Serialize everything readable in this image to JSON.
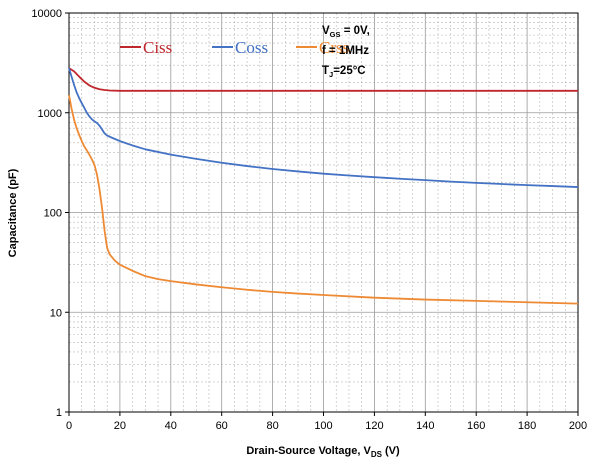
{
  "chart_data": {
    "type": "line",
    "title": "",
    "xlabel": {
      "text": "Drain-Source Voltage, V",
      "sub": "DS",
      "tail": " (V)"
    },
    "ylabel": "Capacitance (pF)",
    "xlim": [
      0,
      200
    ],
    "ylim": [
      1,
      10000
    ],
    "yscale": "log",
    "xticks": [
      "0",
      "20",
      "40",
      "60",
      "80",
      "100",
      "120",
      "140",
      "160",
      "180",
      "200"
    ],
    "yticks": [
      "1",
      "10",
      "100",
      "1000",
      "10000"
    ],
    "grid": true,
    "legend": "top-left",
    "conditions": [
      {
        "main": "V",
        "sub": "GS",
        "tail": " = 0V,"
      },
      {
        "main": "f = 1MHz",
        "sub": "",
        "tail": ""
      },
      {
        "main": "T",
        "sub": "J",
        "tail": "=25°C"
      }
    ],
    "series": [
      {
        "name": "Ciss",
        "color": "#c0272d",
        "points": [
          [
            0,
            2800
          ],
          [
            2,
            2600
          ],
          [
            4,
            2300
          ],
          [
            6,
            2050
          ],
          [
            8,
            1880
          ],
          [
            10,
            1780
          ],
          [
            12,
            1720
          ],
          [
            14,
            1690
          ],
          [
            16,
            1670
          ],
          [
            20,
            1660
          ],
          [
            30,
            1660
          ],
          [
            50,
            1660
          ],
          [
            100,
            1660
          ],
          [
            150,
            1660
          ],
          [
            200,
            1660
          ]
        ]
      },
      {
        "name": "Coss",
        "color": "#4472c4",
        "points": [
          [
            0,
            2800
          ],
          [
            1,
            2300
          ],
          [
            2,
            1900
          ],
          [
            3,
            1600
          ],
          [
            4,
            1400
          ],
          [
            5,
            1250
          ],
          [
            6,
            1120
          ],
          [
            7,
            1000
          ],
          [
            8,
            920
          ],
          [
            9,
            860
          ],
          [
            10,
            820
          ],
          [
            11,
            790
          ],
          [
            12,
            740
          ],
          [
            13,
            680
          ],
          [
            14,
            620
          ],
          [
            15,
            590
          ],
          [
            17,
            560
          ],
          [
            20,
            520
          ],
          [
            25,
            470
          ],
          [
            30,
            430
          ],
          [
            40,
            380
          ],
          [
            50,
            345
          ],
          [
            60,
            315
          ],
          [
            70,
            292
          ],
          [
            80,
            273
          ],
          [
            90,
            258
          ],
          [
            100,
            245
          ],
          [
            110,
            235
          ],
          [
            120,
            226
          ],
          [
            130,
            218
          ],
          [
            140,
            211
          ],
          [
            150,
            204
          ],
          [
            160,
            198
          ],
          [
            170,
            193
          ],
          [
            180,
            188
          ],
          [
            190,
            184
          ],
          [
            200,
            180
          ]
        ]
      },
      {
        "name": "Crss",
        "color": "#ee8a34",
        "points": [
          [
            0,
            1500
          ],
          [
            1,
            1100
          ],
          [
            2,
            850
          ],
          [
            3,
            700
          ],
          [
            4,
            600
          ],
          [
            5,
            520
          ],
          [
            6,
            460
          ],
          [
            7,
            420
          ],
          [
            8,
            380
          ],
          [
            9,
            340
          ],
          [
            10,
            300
          ],
          [
            11,
            240
          ],
          [
            12,
            170
          ],
          [
            13,
            110
          ],
          [
            14,
            65
          ],
          [
            15,
            44
          ],
          [
            16,
            38
          ],
          [
            18,
            33
          ],
          [
            20,
            30
          ],
          [
            25,
            26
          ],
          [
            30,
            23
          ],
          [
            35,
            21.5
          ],
          [
            40,
            20.5
          ],
          [
            50,
            19
          ],
          [
            60,
            17.8
          ],
          [
            70,
            16.8
          ],
          [
            80,
            16
          ],
          [
            90,
            15.4
          ],
          [
            100,
            14.9
          ],
          [
            120,
            14
          ],
          [
            140,
            13.4
          ],
          [
            160,
            13
          ],
          [
            180,
            12.6
          ],
          [
            200,
            12.2
          ]
        ]
      }
    ]
  }
}
